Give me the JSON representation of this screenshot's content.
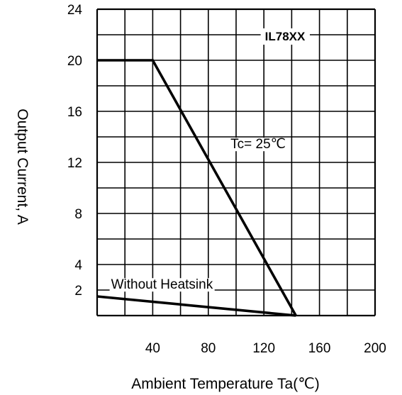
{
  "chart_data": {
    "type": "line",
    "title": "",
    "device_label": "IL78XX",
    "xlabel": "Ambient  Temperature  Ta(℃)",
    "ylabel": "Output  Current,  A",
    "xlim": [
      0,
      200
    ],
    "ylim": [
      0,
      24
    ],
    "x_ticks": [
      40,
      80,
      120,
      160,
      200
    ],
    "y_ticks": [
      2,
      4,
      8,
      12,
      16,
      20,
      24
    ],
    "grid": true,
    "series": [
      {
        "name": "Tc=  25℃",
        "x": [
          0,
          40,
          143
        ],
        "y": [
          20,
          20,
          0
        ]
      },
      {
        "name": "Without  Heatsink",
        "x": [
          0,
          143
        ],
        "y": [
          1.5,
          0
        ]
      }
    ],
    "series_label_anchor": [
      {
        "x": 96,
        "y": 13.1
      },
      {
        "x": 10,
        "y": 2.1
      }
    ],
    "colors": {
      "line": "#000000",
      "grid": "#000000",
      "background": "#ffffff"
    }
  }
}
